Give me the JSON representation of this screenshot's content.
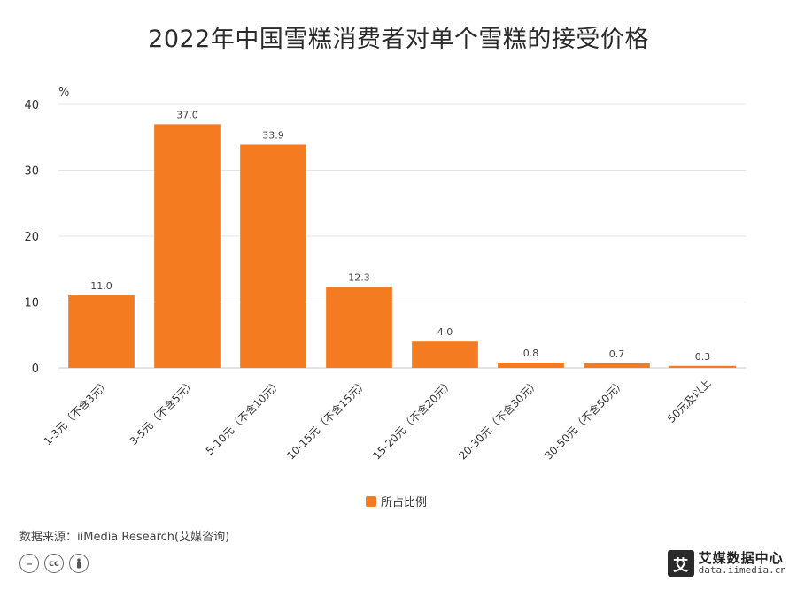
{
  "chart_data": {
    "type": "bar",
    "title": "2022年中国雪糕消费者对单个雪糕的接受价格",
    "ylabel": "%",
    "ylim": [
      0,
      40
    ],
    "yticks": [
      0,
      10,
      20,
      30,
      40
    ],
    "categories": [
      "1-3元（不含3元）",
      "3-5元（不含5元）",
      "5-10元（不含10元）",
      "10-15元（不含15元）",
      "15-20元（不含20元）",
      "20-30元（不含30元）",
      "30-50元（不含50元）",
      "50元及以上"
    ],
    "series": [
      {
        "name": "所占比例",
        "values": [
          11.0,
          37.0,
          33.9,
          12.3,
          4.0,
          0.8,
          0.7,
          0.3
        ],
        "color": "#f47b20"
      }
    ],
    "grid": true,
    "legend_position": "bottom"
  },
  "source": "数据来源：iiMedia Research(艾媒咨询)",
  "license_icons": [
    "cc-equal-icon",
    "cc-icon",
    "cc-person-icon"
  ],
  "watermark": {
    "logo_char": "艾",
    "name": "艾媒数据中心",
    "url": "data.iimedia.cn"
  },
  "colors": {
    "bar": "#f47b20",
    "grid": "#e6e6e6",
    "axis": "#cccccc"
  }
}
